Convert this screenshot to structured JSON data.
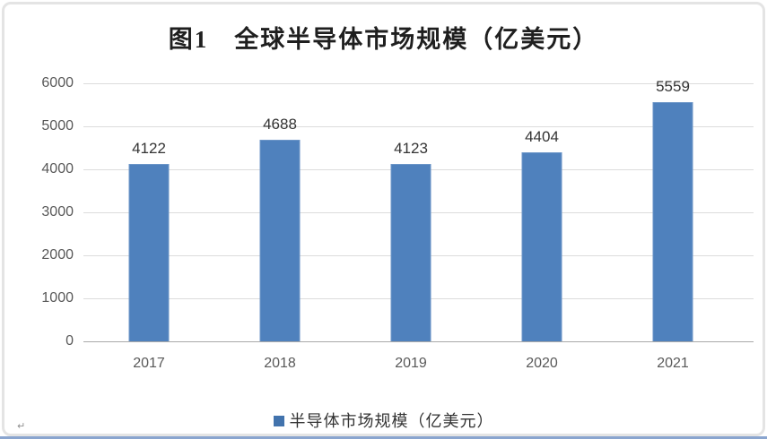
{
  "chart": {
    "title": "图1　全球半导体市场规模（亿美元）",
    "legend_label": "半导体市场规模（亿美元）",
    "paragraph_mark": "↵"
  },
  "chart_data": {
    "type": "bar",
    "title": "图1 全球半导体市场规模（亿美元）",
    "categories": [
      "2017",
      "2018",
      "2019",
      "2020",
      "2021"
    ],
    "series": [
      {
        "name": "半导体市场规模（亿美元）",
        "values": [
          4122,
          4688,
          4123,
          4404,
          5559
        ]
      }
    ],
    "xlabel": "",
    "ylabel": "",
    "ylim": [
      0,
      6000
    ],
    "yticks": [
      0,
      1000,
      2000,
      3000,
      4000,
      5000,
      6000
    ],
    "grid": true,
    "data_labels": true,
    "legend_position": "bottom"
  },
  "colors": {
    "bar": "#4F81BD",
    "bar_edge": "#6C96C8",
    "legend_swatch": "#4273AD",
    "gridline": "#DCDCDC",
    "baseline": "#A9A9A9",
    "frame_border": "#E4E4E4",
    "bottom_line": "#8AA5CF",
    "title_text": "#1F1F1F",
    "axis_text": "#595959",
    "value_text": "#333333"
  }
}
